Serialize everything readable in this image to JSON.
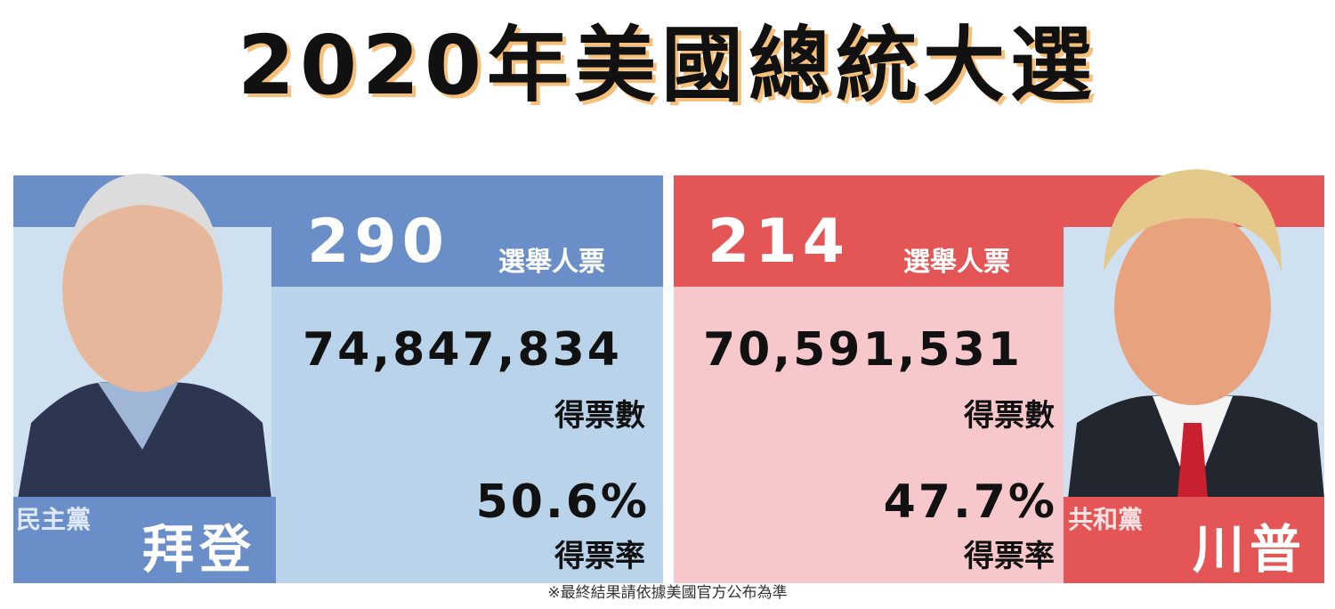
{
  "title": "2020年美國總統大選",
  "candidates": [
    {
      "party": "民主黨",
      "name": "拜登",
      "electoral_votes": "290",
      "electoral_label": "選舉人票",
      "popular_votes": "74,847,834",
      "popular_label": "得票數",
      "share": "50.6%",
      "share_label": "得票率"
    },
    {
      "party": "共和黨",
      "name": "川普",
      "electoral_votes": "214",
      "electoral_label": "選舉人票",
      "popular_votes": "70,591,531",
      "popular_label": "得票數",
      "share": "47.7%",
      "share_label": "得票率"
    }
  ],
  "footnote": "※最終結果請依據美國官方公布為準"
}
